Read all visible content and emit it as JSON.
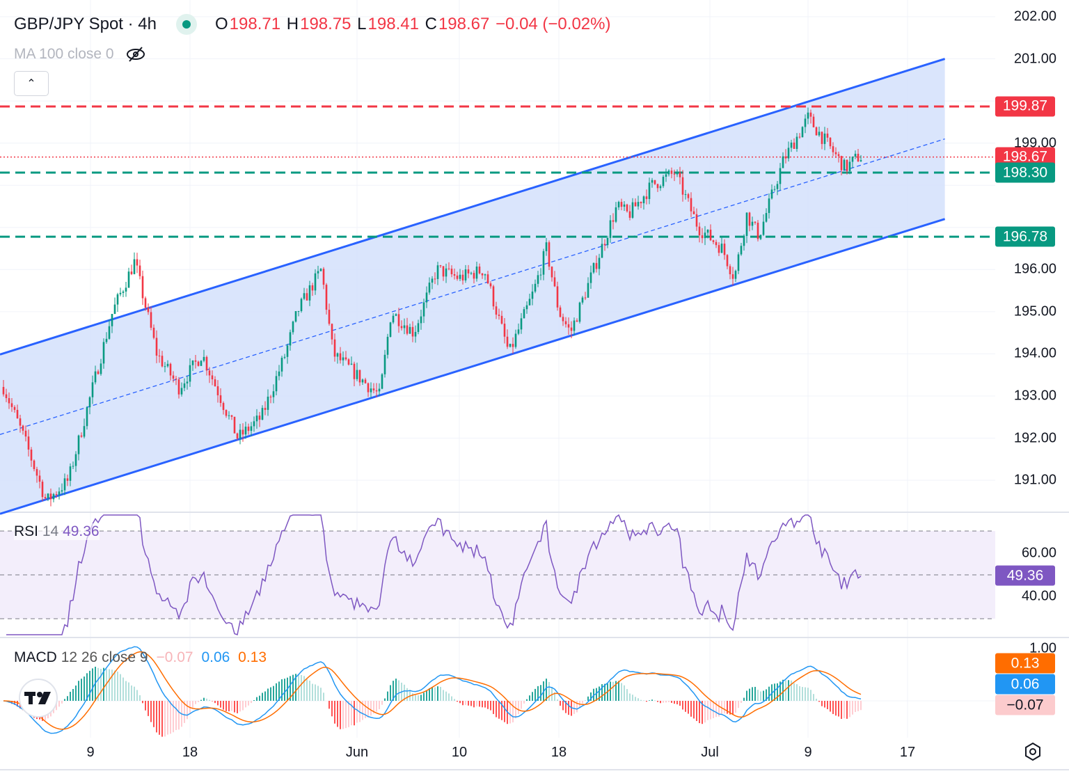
{
  "header": {
    "symbol": "GBP/JPY Spot · 4h",
    "o_label": "O",
    "open": "198.71",
    "h_label": "H",
    "high": "198.75",
    "l_label": "L",
    "low": "198.41",
    "c_label": "C",
    "close": "198.67",
    "change": "−0.04 (−0.02%)",
    "status_icon": "market-open-dot",
    "indicator": "MA 100 close 0",
    "hidden_icon": "eye-off-icon",
    "collapse_icon": "chevron-up-icon"
  },
  "colors": {
    "up": "#089981",
    "down": "#f23645",
    "channel": "#2962ff",
    "channel_fill": "#d4e0fb",
    "rsi": "#7e57c2",
    "macd": "#2196f3",
    "signal": "#ff6d00"
  },
  "chart_data": [
    {
      "type": "candlestick",
      "title": "GBP/JPY Spot · 4h",
      "y_ticks": [
        "202.00",
        "201.00",
        "199.00",
        "196.00",
        "195.00",
        "194.00",
        "193.00",
        "192.00",
        "191.00"
      ],
      "ylim": [
        190.3,
        202.3
      ],
      "x_ticks": [
        {
          "label": "9",
          "date": "May 9"
        },
        {
          "label": "18",
          "date": "May 18"
        },
        {
          "label": "Jun",
          "date": "Jun 1"
        },
        {
          "label": "10",
          "date": "Jun 10"
        },
        {
          "label": "18",
          "date": "Jun 18"
        },
        {
          "label": "Jul",
          "date": "Jul 1"
        },
        {
          "label": "9",
          "date": "Jul 9"
        },
        {
          "label": "17",
          "date": "Jul 17"
        }
      ],
      "price_path": [
        [
          "May 1",
          193.3
        ],
        [
          "May 3",
          192.0
        ],
        [
          "May 5",
          190.5
        ],
        [
          "May 7",
          191.0
        ],
        [
          "May 9",
          193.0
        ],
        [
          "May 11",
          195.0
        ],
        [
          "May 13",
          196.2
        ],
        [
          "May 15",
          194.0
        ],
        [
          "May 17",
          193.2
        ],
        [
          "May 19",
          194.0
        ],
        [
          "May 22",
          192.0
        ],
        [
          "May 24",
          192.5
        ],
        [
          "May 26",
          194.0
        ],
        [
          "May 27",
          195.0
        ],
        [
          "May 29",
          196.0
        ],
        [
          "May 30",
          194.0
        ],
        [
          "Jun 3",
          193.0
        ],
        [
          "Jun 4",
          195.0
        ],
        [
          "Jun 6",
          194.5
        ],
        [
          "Jun 8",
          196.0
        ],
        [
          "Jun 10",
          195.8
        ],
        [
          "Jun 12",
          196.0
        ],
        [
          "Jun 14",
          194.0
        ],
        [
          "Jun 16",
          195.5
        ],
        [
          "Jun 17",
          196.5
        ],
        [
          "Jun 18",
          195.0
        ],
        [
          "Jun 19",
          194.5
        ],
        [
          "Jun 21",
          196.0
        ],
        [
          "Jun 23",
          197.5
        ],
        [
          "Jun 24",
          197.3
        ],
        [
          "Jun 26",
          198.0
        ],
        [
          "Jun 28",
          198.3
        ],
        [
          "Jun 30",
          197.0
        ],
        [
          "Jul 2",
          196.5
        ],
        [
          "Jul 3",
          195.8
        ],
        [
          "Jul 4",
          197.3
        ],
        [
          "Jul 5",
          196.8
        ],
        [
          "Jul 7",
          198.6
        ],
        [
          "Jul 9",
          199.6
        ],
        [
          "Jul 11",
          198.8
        ],
        [
          "Jul 12",
          198.4
        ],
        [
          "Jul 13",
          198.67
        ]
      ],
      "channel": {
        "upper": [
          [
            "May 1",
            194.0
          ],
          [
            "Jul 20",
            201.0
          ]
        ],
        "lower": [
          [
            "May 2",
            190.3
          ],
          [
            "Jul 20",
            197.2
          ]
        ],
        "mid": [
          [
            "May 1",
            192.1
          ],
          [
            "Jul 20",
            199.1
          ]
        ]
      },
      "levels": [
        {
          "value": "199.87",
          "color": "#f23645",
          "style": "dashed"
        },
        {
          "value": "198.67",
          "color": "#f23645",
          "style": "dotted"
        },
        {
          "value": "198.30",
          "color": "#089981",
          "style": "dashed"
        },
        {
          "value": "196.78",
          "color": "#089981",
          "style": "dashed"
        }
      ]
    },
    {
      "type": "line",
      "title": "RSI 14",
      "label": "RSI",
      "params": "14",
      "value": "49.36",
      "y_ticks": [
        "60.00",
        "40.00"
      ],
      "bands": [
        70,
        50,
        30
      ],
      "ylim": [
        20,
        80
      ]
    },
    {
      "type": "line",
      "title": "MACD 12 26 close 9",
      "label": "MACD",
      "params": "12 26 close 9",
      "histogram": "−0.07",
      "macd": "0.06",
      "signal": "0.13",
      "y_ticks": [
        "1.00"
      ]
    }
  ]
}
